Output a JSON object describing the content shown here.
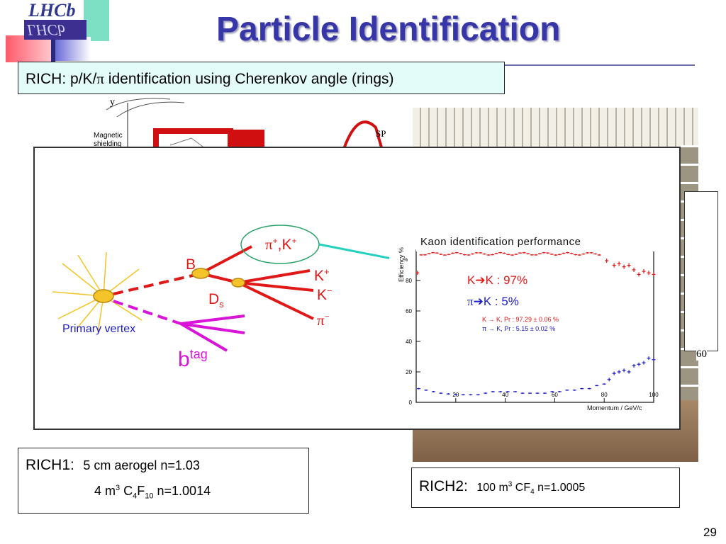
{
  "logo": {
    "top_text": "LHCb",
    "bottom_text": "LHCb"
  },
  "title": "Particle Identification",
  "subtitle": {
    "prefix": "RICH: p/K/",
    "pi": "π",
    "suffix": " identification using Cherenkov angle (rings)"
  },
  "background_diagram": {
    "axis_label": "y",
    "shield_label_1": "Magnetic",
    "shield_label_2": "shielding",
    "sp_label": "SP"
  },
  "photo": {
    "tick_label": "60"
  },
  "decay": {
    "B": "B",
    "Ds": "D",
    "Ds_sub": "s",
    "K_plus": "K",
    "K_plus_sup": "+",
    "K_minus": "K",
    "K_minus_sup": "−",
    "pi_minus": "π",
    "pi_minus_sup": "−",
    "highlight_pi": "π",
    "highlight_pi_sup": "+",
    "highlight_sep": ",K",
    "highlight_k_sup": "+",
    "primary_vertex": "Primary vertex",
    "btag_base": "b",
    "btag_sup": "tag"
  },
  "kaon_plot": {
    "title": "Kaon identification performance",
    "ylabel": "Efficiency %",
    "xlabel": "Momentum / GeV/c",
    "note_k": "K",
    "note_k_result": "K : 97%",
    "note_pi": "π",
    "note_pi_result": "K : 5%",
    "legend_k": "K → K, Pr : 97.29 ± 0.06 %",
    "legend_pi": "π → K, Pr : 5.15 ± 0.02 %",
    "y_ticks": [
      "0",
      "20",
      "40",
      "60",
      "80",
      "%"
    ],
    "x_ticks": [
      "20",
      "40",
      "60",
      "80",
      "100"
    ],
    "colors": {
      "k": "#e01818",
      "pi": "#1c1cc8"
    }
  },
  "rich1": {
    "label": "RICH1:",
    "line1": "5 cm aerogel n=1.03",
    "line2_a": "4 m",
    "line2_sup": "3",
    "line2_b": " C",
    "line2_sub1": "4",
    "line2_c": "F",
    "line2_sub2": "10",
    "line2_d": " n=1.0014"
  },
  "rich2": {
    "label": "RICH2:",
    "text_a": "100 m",
    "text_sup": "3",
    "text_b": " CF",
    "text_sub": "4",
    "text_c": "  n=1.0005"
  },
  "page_number": "29"
}
